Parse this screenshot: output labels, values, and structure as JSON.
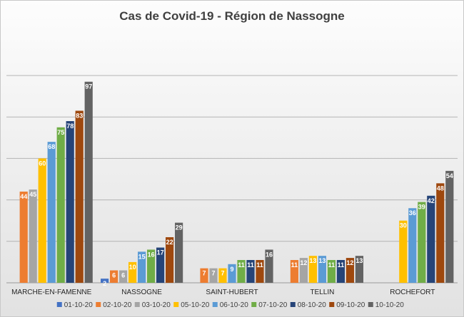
{
  "chart_data": {
    "type": "bar",
    "title": "Cas de Covid-19 - Région de Nassogne",
    "xlabel": "",
    "ylabel": "",
    "ylim": [
      0,
      100
    ],
    "grid": true,
    "legend_position": "bottom",
    "categories": [
      "MARCHE-EN-FAMENNE",
      "NASSOGNE",
      "SAINT-HUBERT",
      "TELLIN",
      "ROCHEFORT"
    ],
    "series": [
      {
        "name": "01-10-20",
        "color": "#4472c4",
        "values": [
          null,
          2,
          null,
          null,
          null
        ]
      },
      {
        "name": "02-10-20",
        "color": "#ed7d31",
        "values": [
          44,
          6,
          7,
          11,
          null
        ]
      },
      {
        "name": "03-10-20",
        "color": "#a5a5a5",
        "values": [
          45,
          6,
          7,
          12,
          null
        ]
      },
      {
        "name": "05-10-20",
        "color": "#ffc000",
        "values": [
          60,
          10,
          7,
          13,
          30
        ]
      },
      {
        "name": "06-10-20",
        "color": "#5b9bd5",
        "values": [
          68,
          15,
          9,
          13,
          36
        ]
      },
      {
        "name": "07-10-20",
        "color": "#70ad47",
        "values": [
          75,
          16,
          11,
          11,
          39
        ]
      },
      {
        "name": "08-10-20",
        "color": "#264478",
        "values": [
          78,
          17,
          11,
          11,
          42
        ]
      },
      {
        "name": "09-10-20",
        "color": "#9e480e",
        "values": [
          83,
          22,
          11,
          12,
          48
        ]
      },
      {
        "name": "10-10-20",
        "color": "#636363",
        "values": [
          97,
          29,
          16,
          13,
          54
        ]
      }
    ]
  }
}
